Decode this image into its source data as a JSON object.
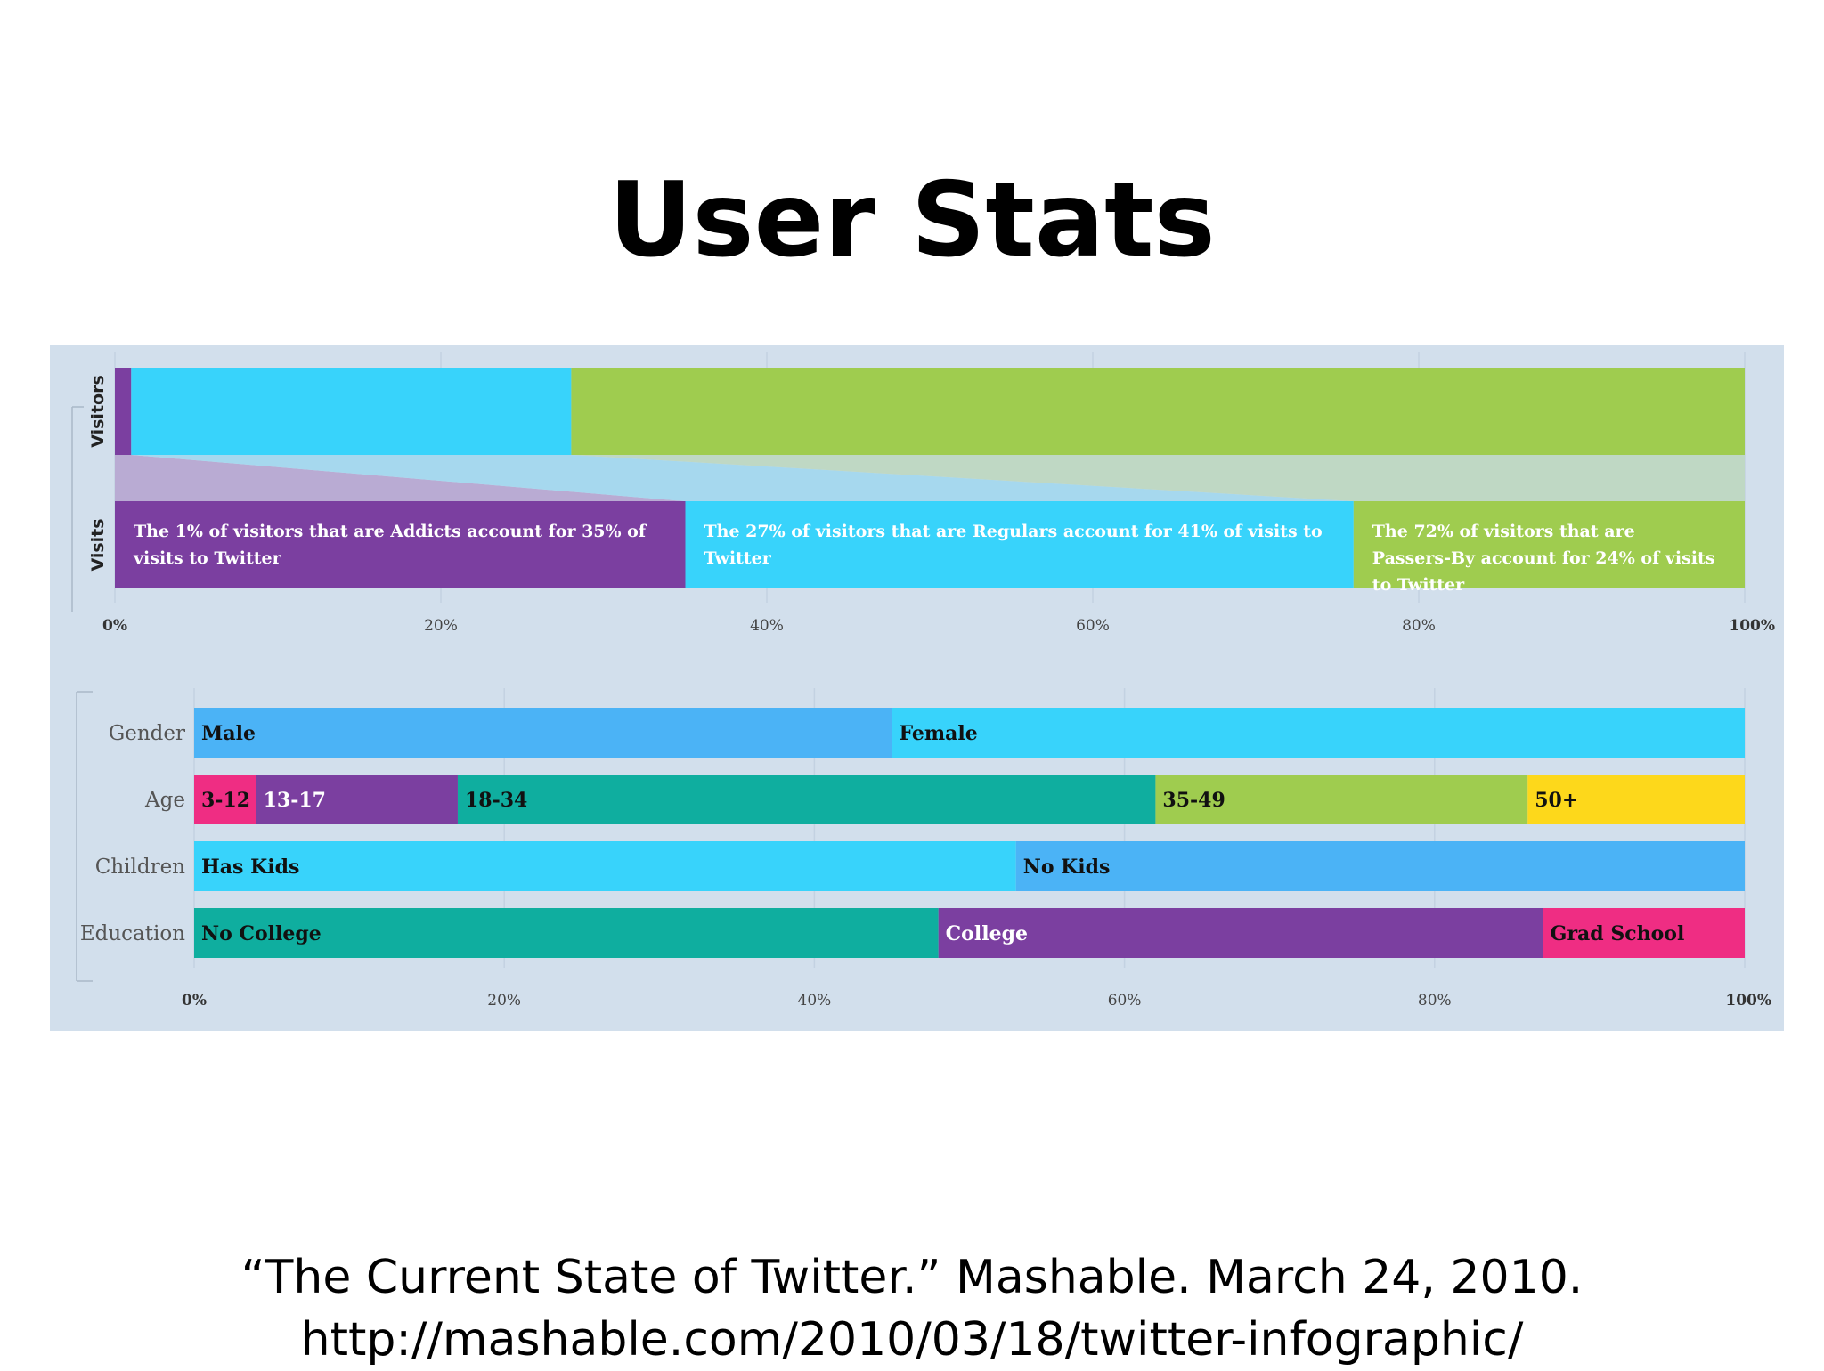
{
  "title": "User Stats",
  "citation": {
    "line1": "“The Current State of Twitter.” Mashable. March 24, 2010.",
    "line2": "http://mashable.com/2010/03/18/twitter-infographic/"
  },
  "chart_data": [
    {
      "type": "bar",
      "orientation": "horizontal",
      "stacked": true,
      "normalized": true,
      "categories": [
        "Visitors",
        "Visits"
      ],
      "series": [
        {
          "name": "Addicts",
          "values": [
            1,
            35
          ],
          "color": "#7b3fa0"
        },
        {
          "name": "Regulars",
          "values": [
            27,
            41
          ],
          "color": "#38d3fb"
        },
        {
          "name": "Passers-By",
          "values": [
            72,
            24
          ],
          "color": "#9fcc4f"
        }
      ],
      "annotations": [
        "The 1% of visitors that are Addicts account for 35% of visits to Twitter",
        "The 27% of visitors that are Regulars account for 41% of visits to Twitter",
        "The 72% of visitors that are Passers-By account for 24% of visits to Twitter"
      ],
      "xticks": [
        "0%",
        "20%",
        "40%",
        "60%",
        "80%",
        "100%"
      ],
      "xlim": [
        0,
        100
      ],
      "grid": true
    },
    {
      "type": "bar",
      "orientation": "horizontal",
      "stacked": true,
      "normalized": true,
      "rows": [
        {
          "label": "Gender",
          "segments": [
            {
              "name": "Male",
              "value": 45,
              "color": "#4bb3f6",
              "text_color": "#111111"
            },
            {
              "name": "Female",
              "value": 55,
              "color": "#38d3fb",
              "text_color": "#111111"
            }
          ]
        },
        {
          "label": "Age",
          "segments": [
            {
              "name": "3-12",
              "value": 4,
              "color": "#ef2d83",
              "text_color": "#111111"
            },
            {
              "name": "13-17",
              "value": 13,
              "color": "#7b3fa0",
              "text_color": "#ffffff"
            },
            {
              "name": "18-34",
              "value": 45,
              "color": "#0fae9f",
              "text_color": "#111111"
            },
            {
              "name": "35-49",
              "value": 24,
              "color": "#9fcc4f",
              "text_color": "#111111"
            },
            {
              "name": "50+",
              "value": 14,
              "color": "#fdd81b",
              "text_color": "#111111"
            }
          ]
        },
        {
          "label": "Children",
          "segments": [
            {
              "name": "Has Kids",
              "value": 53,
              "color": "#38d3fb",
              "text_color": "#111111"
            },
            {
              "name": "No Kids",
              "value": 47,
              "color": "#4bb3f6",
              "text_color": "#111111"
            }
          ]
        },
        {
          "label": "Education",
          "segments": [
            {
              "name": "No College",
              "value": 48,
              "color": "#0fae9f",
              "text_color": "#111111"
            },
            {
              "name": "College",
              "value": 39,
              "color": "#7b3fa0",
              "text_color": "#ffffff"
            },
            {
              "name": "Grad School",
              "value": 13,
              "color": "#ef2d83",
              "text_color": "#111111"
            }
          ]
        }
      ],
      "xticks": [
        "0%",
        "20%",
        "40%",
        "60%",
        "80%",
        "100%"
      ],
      "xlim": [
        0,
        100
      ],
      "grid": true
    }
  ]
}
